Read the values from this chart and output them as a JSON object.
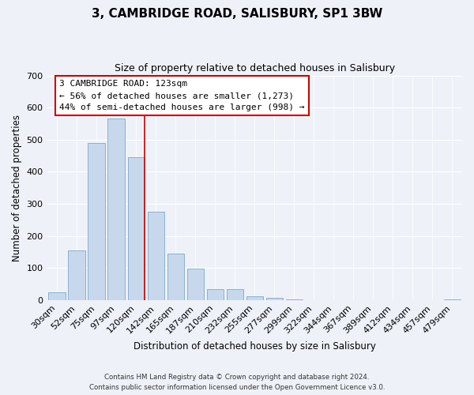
{
  "title": "3, CAMBRIDGE ROAD, SALISBURY, SP1 3BW",
  "subtitle": "Size of property relative to detached houses in Salisbury",
  "xlabel": "Distribution of detached houses by size in Salisbury",
  "ylabel": "Number of detached properties",
  "bar_labels": [
    "30sqm",
    "52sqm",
    "75sqm",
    "97sqm",
    "120sqm",
    "142sqm",
    "165sqm",
    "187sqm",
    "210sqm",
    "232sqm",
    "255sqm",
    "277sqm",
    "299sqm",
    "322sqm",
    "344sqm",
    "367sqm",
    "389sqm",
    "412sqm",
    "434sqm",
    "457sqm",
    "479sqm"
  ],
  "bar_heights": [
    25,
    155,
    490,
    565,
    445,
    275,
    145,
    98,
    35,
    35,
    13,
    8,
    2,
    0,
    0,
    0,
    0,
    0,
    0,
    0,
    3
  ],
  "bar_color": "#c8d8ec",
  "bar_edge_color": "#89b0d0",
  "property_line_color": "#cc0000",
  "annotation_title": "3 CAMBRIDGE ROAD: 123sqm",
  "annotation_line1": "← 56% of detached houses are smaller (1,273)",
  "annotation_line2": "44% of semi-detached houses are larger (998) →",
  "annotation_box_color": "#ffffff",
  "annotation_box_edge_color": "#cc0000",
  "ylim": [
    0,
    700
  ],
  "yticks": [
    0,
    100,
    200,
    300,
    400,
    500,
    600,
    700
  ],
  "footer1": "Contains HM Land Registry data © Crown copyright and database right 2024.",
  "footer2": "Contains public sector information licensed under the Open Government Licence v3.0.",
  "background_color": "#eef2f8",
  "grid_color": "#ffffff",
  "title_fontsize": 11,
  "subtitle_fontsize": 9
}
